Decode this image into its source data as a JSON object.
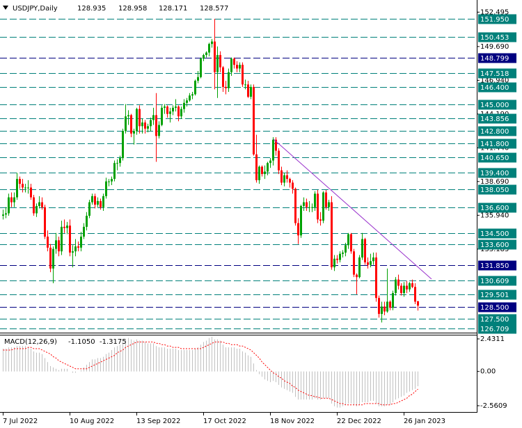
{
  "chart_data": {
    "type": "candlestick",
    "symbol_label": "USDJPY,Daily",
    "up_color": "#00a000",
    "down_color": "#ff0000",
    "categories": [
      "7 Jul 2022",
      null,
      null,
      null,
      null,
      null,
      null,
      null,
      null,
      null,
      null,
      null,
      null,
      null,
      null,
      null,
      null,
      null,
      null,
      null,
      null,
      null,
      null,
      null,
      "10 Aug 2022",
      null,
      null,
      null,
      null,
      null,
      null,
      null,
      null,
      null,
      null,
      null,
      null,
      null,
      null,
      null,
      null,
      null,
      null,
      null,
      null,
      null,
      null,
      null,
      "13 Sep 2022",
      null,
      null,
      null,
      null,
      null,
      null,
      null,
      null,
      null,
      null,
      null,
      null,
      null,
      null,
      null,
      null,
      null,
      null,
      null,
      null,
      null,
      null,
      null,
      "17 Oct 2022",
      null,
      null,
      null,
      null,
      null,
      null,
      null,
      null,
      null,
      null,
      null,
      null,
      null,
      null,
      null,
      null,
      null,
      null,
      null,
      null,
      null,
      null,
      null,
      "18 Nov 2022",
      null,
      null,
      null,
      null,
      null,
      null,
      null,
      null,
      null,
      null,
      null,
      null,
      null,
      null,
      null,
      null,
      null,
      null,
      null,
      null,
      null,
      null,
      null,
      "22 Dec 2022",
      null,
      null,
      null,
      null,
      null,
      null,
      null,
      null,
      null,
      null,
      null,
      null,
      null,
      null,
      null,
      null,
      null,
      null,
      null,
      null,
      null,
      null,
      null,
      "26 Jan 2023",
      null,
      null,
      null,
      null,
      null
    ],
    "open": [
      135.9,
      136.0,
      136.1,
      137.4,
      137.0,
      137.4,
      138.9,
      138.5,
      138.2,
      138.2,
      138.2,
      137.4,
      136.1,
      136.7,
      137.0,
      136.6,
      134.2,
      133.3,
      131.6,
      133.2,
      133.9,
      133.0,
      135.0,
      134.9,
      135.1,
      132.9,
      133.0,
      133.4,
      133.3,
      134.2,
      135.0,
      135.9,
      137.0,
      137.5,
      136.8,
      137.1,
      136.6,
      137.5,
      138.7,
      138.7,
      138.9,
      140.2,
      140.2,
      140.6,
      142.8,
      144.0,
      144.1,
      142.6,
      142.8,
      144.6,
      143.2,
      143.5,
      143.0,
      143.2,
      143.7,
      144.1,
      142.4,
      143.3,
      144.7,
      144.8,
      144.2,
      144.4,
      144.7,
      144.8,
      144.0,
      144.6,
      145.1,
      145.3,
      145.7,
      145.8,
      146.9,
      147.2,
      148.7,
      149.0,
      149.2,
      149.9,
      150.1,
      147.6,
      149.0,
      148.0,
      146.4,
      146.3,
      147.6,
      148.7,
      148.2,
      147.9,
      148.2,
      146.6,
      146.6,
      145.6,
      146.4,
      140.9,
      138.8,
      139.9,
      139.3,
      139.5,
      140.2,
      140.4,
      142.1,
      141.2,
      139.6,
      138.6,
      139.2,
      138.9,
      138.6,
      138.1,
      135.3,
      134.3,
      136.7,
      137.0,
      136.6,
      136.6,
      136.6,
      137.7,
      135.6,
      135.5,
      137.8,
      136.6,
      137.0,
      131.7,
      132.4,
      132.3,
      132.8,
      132.9,
      133.5,
      134.4,
      133.0,
      131.1,
      130.9,
      132.5,
      134.0,
      132.1,
      131.9,
      132.2,
      132.5,
      129.2,
      127.9,
      128.5,
      128.1,
      128.9,
      128.4,
      129.6,
      130.7,
      130.2,
      129.6,
      130.2,
      129.9,
      130.4,
      130.1,
      128.935
    ],
    "high": [
      136.4,
      136.6,
      137.7,
      137.8,
      137.8,
      139.4,
      139.1,
      138.9,
      138.5,
      138.8,
      138.5,
      137.6,
      136.9,
      137.5,
      137.4,
      136.8,
      134.7,
      133.6,
      133.4,
      134.5,
      134.2,
      135.5,
      135.6,
      135.4,
      135.6,
      133.5,
      134.0,
      133.8,
      134.6,
      135.3,
      136.2,
      137.2,
      137.7,
      137.7,
      137.4,
      137.3,
      137.7,
      139.0,
      138.9,
      139.1,
      140.4,
      140.5,
      140.8,
      143.0,
      145.0,
      144.5,
      144.2,
      143.0,
      144.7,
      144.9,
      143.8,
      143.7,
      143.4,
      143.9,
      144.7,
      145.9,
      143.6,
      144.9,
      145.0,
      144.9,
      144.7,
      144.9,
      145.4,
      144.9,
      144.8,
      145.4,
      145.5,
      145.9,
      146.0,
      147.0,
      147.7,
      148.8,
      149.1,
      149.3,
      150.0,
      150.3,
      151.95,
      149.7,
      149.3,
      148.1,
      146.9,
      147.9,
      148.8,
      148.8,
      148.5,
      148.4,
      148.4,
      147.0,
      146.9,
      146.6,
      146.6,
      142.5,
      140.0,
      140.0,
      140.0,
      140.3,
      140.6,
      142.3,
      142.3,
      141.4,
      139.9,
      139.4,
      139.6,
      139.0,
      138.8,
      138.2,
      135.7,
      136.8,
      137.4,
      137.3,
      137.1,
      136.9,
      137.9,
      138.0,
      136.2,
      137.9,
      138.0,
      137.2,
      137.5,
      132.7,
      132.7,
      133.0,
      133.1,
      133.7,
      134.5,
      134.5,
      133.2,
      131.2,
      132.7,
      134.5,
      134.1,
      132.5,
      132.8,
      132.9,
      132.9,
      129.4,
      128.9,
      128.9,
      131.6,
      129.0,
      129.8,
      130.9,
      131.1,
      130.4,
      130.5,
      130.6,
      130.5,
      130.7,
      130.4,
      128.958
    ],
    "low": [
      135.6,
      135.7,
      135.9,
      136.6,
      136.6,
      137.2,
      138.1,
      137.8,
      137.8,
      137.7,
      137.2,
      135.9,
      135.8,
      136.5,
      136.4,
      134.0,
      133.0,
      131.3,
      130.4,
      132.8,
      132.6,
      132.7,
      134.5,
      134.4,
      132.6,
      131.7,
      132.6,
      133.0,
      133.0,
      134.0,
      134.7,
      135.7,
      136.8,
      136.5,
      136.6,
      136.4,
      136.3,
      137.3,
      138.3,
      138.4,
      138.7,
      139.6,
      139.9,
      140.4,
      142.6,
      143.3,
      142.3,
      141.7,
      142.5,
      142.6,
      142.6,
      142.6,
      142.7,
      142.8,
      143.3,
      140.3,
      142.2,
      143.2,
      144.2,
      143.9,
      143.5,
      144.1,
      144.4,
      143.6,
      143.8,
      144.3,
      144.8,
      145.2,
      145.4,
      145.7,
      146.7,
      147.1,
      148.5,
      148.8,
      148.9,
      149.6,
      146.2,
      145.5,
      147.6,
      146.0,
      145.8,
      146.0,
      147.3,
      147.9,
      147.6,
      147.6,
      146.4,
      146.2,
      145.5,
      145.4,
      140.8,
      138.6,
      138.5,
      139.1,
      138.9,
      139.2,
      139.8,
      140.0,
      140.8,
      139.3,
      138.4,
      138.3,
      138.6,
      138.2,
      137.7,
      135.1,
      133.6,
      134.1,
      136.3,
      136.3,
      136.2,
      136.2,
      136.3,
      135.3,
      135.1,
      135.3,
      136.4,
      136.3,
      131.5,
      131.4,
      132.0,
      132.1,
      132.5,
      132.6,
      133.2,
      132.8,
      130.9,
      129.5,
      130.8,
      132.3,
      131.9,
      131.6,
      131.7,
      131.9,
      128.9,
      127.6,
      127.2,
      127.8,
      128.0,
      128.2,
      128.2,
      129.4,
      129.9,
      129.4,
      129.3,
      129.6,
      129.7,
      130.0,
      128.7,
      128.171
    ],
    "close": [
      136.0,
      136.1,
      137.4,
      137.0,
      137.4,
      138.9,
      138.5,
      138.2,
      138.2,
      138.2,
      137.4,
      136.1,
      136.7,
      137.0,
      136.6,
      134.2,
      133.3,
      131.6,
      133.2,
      133.9,
      133.0,
      135.0,
      134.9,
      135.1,
      132.9,
      133.0,
      133.4,
      133.3,
      134.2,
      135.0,
      135.9,
      137.0,
      137.5,
      136.8,
      137.1,
      136.6,
      137.5,
      138.7,
      138.7,
      138.9,
      140.2,
      140.2,
      140.6,
      142.8,
      144.0,
      144.1,
      142.6,
      142.8,
      144.6,
      143.2,
      143.5,
      143.0,
      143.2,
      143.7,
      144.1,
      142.4,
      143.3,
      144.7,
      144.8,
      144.2,
      144.4,
      144.7,
      144.8,
      144.0,
      144.6,
      145.1,
      145.3,
      145.7,
      145.8,
      146.9,
      147.2,
      148.7,
      149.0,
      149.2,
      149.9,
      150.1,
      147.6,
      149.0,
      148.0,
      146.4,
      146.3,
      147.6,
      148.7,
      148.2,
      147.9,
      148.2,
      146.6,
      146.6,
      145.6,
      146.4,
      140.9,
      138.8,
      139.9,
      139.3,
      139.5,
      140.2,
      140.4,
      142.1,
      141.2,
      139.6,
      138.6,
      139.2,
      138.9,
      138.6,
      138.1,
      135.3,
      134.3,
      136.7,
      137.0,
      136.6,
      136.6,
      136.6,
      137.7,
      135.6,
      135.5,
      137.8,
      136.6,
      137.0,
      131.7,
      132.4,
      132.3,
      132.8,
      132.9,
      133.5,
      134.4,
      133.0,
      131.1,
      130.9,
      132.5,
      134.0,
      132.1,
      131.9,
      132.2,
      132.5,
      129.2,
      127.9,
      128.5,
      128.1,
      128.9,
      128.4,
      129.6,
      130.7,
      130.2,
      129.6,
      130.2,
      129.9,
      130.4,
      130.1,
      128.9,
      128.577
    ],
    "ylim": [
      126.43,
      153.37
    ],
    "yticks": [
      152.495,
      {
        "value": 149.69,
        "label": "149.690"
      },
      {
        "value": 146.94,
        "label": "146.940"
      },
      {
        "value": 144.19,
        "label": "144.190"
      },
      {
        "value": 141.44,
        "label": "141.440"
      },
      {
        "value": 138.69,
        "label": "138.690"
      },
      {
        "value": 135.94,
        "label": "135.940"
      },
      133.185
    ],
    "levels": [
      {
        "value": 151.95,
        "label": "151.950",
        "color": "#00807a"
      },
      {
        "value": 150.453,
        "color": "#00807a"
      },
      {
        "value": 148.799,
        "color": "#000080"
      },
      {
        "value": 147.518,
        "color": "#00807a"
      },
      {
        "value": 146.4,
        "label": "146.400",
        "color": "#00807a"
      },
      {
        "value": 145,
        "label": "145.000",
        "color": "#00807a"
      },
      {
        "value": 143.856,
        "color": "#00807a"
      },
      {
        "value": 142.8,
        "label": "142.800",
        "color": "#00807a"
      },
      {
        "value": 141.8,
        "label": "141.800",
        "color": "#00807a"
      },
      {
        "value": 140.65,
        "label": "140.650",
        "color": "#00807a"
      },
      {
        "value": 139.4,
        "label": "139.400",
        "color": "#00807a"
      },
      {
        "value": 138.05,
        "label": "138.050",
        "color": "#00807a"
      },
      {
        "value": 136.6,
        "label": "136.600",
        "color": "#00807a"
      },
      {
        "value": 134.5,
        "label": "134.500",
        "color": "#00807a"
      },
      {
        "value": 133.6,
        "label": "133.600",
        "color": "#00807a"
      },
      {
        "value": 131.85,
        "label": "131.850",
        "color": "#000080"
      },
      {
        "value": 130.609,
        "color": "#00807a"
      },
      {
        "value": 129.501,
        "color": "#00807a"
      },
      {
        "value": 128.5,
        "label": "128.500",
        "color": "#000080"
      },
      {
        "value": 127.5,
        "label": "127.500",
        "color": "#00807a"
      },
      {
        "value": 126.709,
        "color": "#00807a"
      }
    ],
    "macd": {
      "title": "MACD(12,26,9)",
      "readout": [
        {
          "value": -1.105,
          "label": "-1.1050"
        },
        {
          "value": -1.3175,
          "label": "-1.3175"
        }
      ],
      "histogram_color": "#c0c0c0",
      "signal_color": "#ff0000",
      "ylim": [
        -3.03,
        2.69
      ],
      "yticks": [
        2.4311,
        {
          "value": 0,
          "label": "0.00"
        },
        -2.5609
      ],
      "histogram": [
        1.7,
        1.7,
        1.8,
        1.8,
        1.8,
        1.9,
        1.9,
        1.9,
        1.9,
        1.8,
        1.7,
        1.5,
        1.4,
        1.4,
        1.3,
        1.0,
        0.7,
        0.4,
        0.3,
        0.2,
        0.1,
        0.2,
        0.2,
        0.2,
        0.0,
        -0.1,
        -0.1,
        0.0,
        0.1,
        0.3,
        0.5,
        0.7,
        0.9,
        0.9,
        1.0,
        1.0,
        1.1,
        1.3,
        1.4,
        1.6,
        1.8,
        1.9,
        2.0,
        2.2,
        2.4,
        2.5,
        2.4,
        2.3,
        2.4,
        2.3,
        2.3,
        2.2,
        2.1,
        2.1,
        2.1,
        1.9,
        1.8,
        1.8,
        1.8,
        1.7,
        1.7,
        1.7,
        1.7,
        1.6,
        1.6,
        1.6,
        1.6,
        1.6,
        1.6,
        1.7,
        1.8,
        2.0,
        2.2,
        2.3,
        2.5,
        2.6,
        2.4,
        2.4,
        2.3,
        2.0,
        1.8,
        1.8,
        1.8,
        1.8,
        1.7,
        1.7,
        1.5,
        1.4,
        1.2,
        1.1,
        0.6,
        0.1,
        -0.2,
        -0.4,
        -0.6,
        -0.7,
        -0.8,
        -0.7,
        -0.8,
        -1.0,
        -1.2,
        -1.3,
        -1.4,
        -1.5,
        -1.6,
        -1.9,
        -2.1,
        -2.1,
        -2.1,
        -2.1,
        -2.1,
        -2.1,
        -2.0,
        -2.1,
        -2.1,
        -2.0,
        -2.0,
        -2.0,
        -2.4,
        -2.6,
        -2.7,
        -2.7,
        -2.6,
        -2.5,
        -2.4,
        -2.4,
        -2.5,
        -2.6,
        -2.5,
        -2.3,
        -2.3,
        -2.3,
        -2.2,
        -2.2,
        -2.4,
        -2.6,
        -2.6,
        -2.6,
        -2.5,
        -2.5,
        -2.3,
        -2.1,
        -2.0,
        -1.9,
        -1.8,
        -1.6,
        -1.5,
        -1.4,
        -1.3,
        -1.105
      ],
      "signal": [
        1.6,
        1.6,
        1.6,
        1.6,
        1.7,
        1.7,
        1.7,
        1.7,
        1.7,
        1.8,
        1.8,
        1.7,
        1.7,
        1.7,
        1.6,
        1.5,
        1.4,
        1.3,
        1.1,
        1.0,
        0.8,
        0.7,
        0.6,
        0.5,
        0.4,
        0.3,
        0.2,
        0.2,
        0.2,
        0.2,
        0.2,
        0.3,
        0.4,
        0.5,
        0.6,
        0.7,
        0.8,
        0.9,
        1.0,
        1.1,
        1.2,
        1.4,
        1.5,
        1.6,
        1.8,
        1.9,
        2.0,
        2.1,
        2.2,
        2.2,
        2.2,
        2.2,
        2.2,
        2.2,
        2.2,
        2.1,
        2.1,
        2.0,
        2.0,
        1.9,
        1.9,
        1.8,
        1.8,
        1.8,
        1.7,
        1.7,
        1.7,
        1.7,
        1.7,
        1.7,
        1.7,
        1.7,
        1.8,
        1.9,
        2.0,
        2.1,
        2.2,
        2.2,
        2.2,
        2.2,
        2.1,
        2.1,
        2.0,
        2.0,
        2.0,
        1.9,
        1.9,
        1.8,
        1.7,
        1.6,
        1.4,
        1.2,
        1.0,
        0.7,
        0.5,
        0.3,
        0.1,
        -0.1,
        -0.2,
        -0.4,
        -0.5,
        -0.7,
        -0.8,
        -0.9,
        -1.1,
        -1.2,
        -1.4,
        -1.5,
        -1.6,
        -1.7,
        -1.8,
        -1.8,
        -1.9,
        -1.9,
        -2.0,
        -2.0,
        -2.0,
        -2.0,
        -2.1,
        -2.2,
        -2.3,
        -2.4,
        -2.4,
        -2.5,
        -2.5,
        -2.5,
        -2.5,
        -2.5,
        -2.5,
        -2.5,
        -2.4,
        -2.4,
        -2.4,
        -2.4,
        -2.4,
        -2.4,
        -2.5,
        -2.5,
        -2.5,
        -2.5,
        -2.4,
        -2.4,
        -2.3,
        -2.2,
        -2.1,
        -2.0,
        -1.8,
        -1.7,
        -1.5,
        -1.3175
      ]
    }
  }
}
